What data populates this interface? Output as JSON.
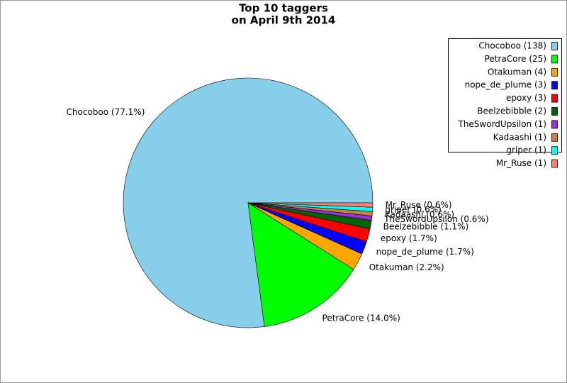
{
  "chart_data": {
    "type": "pie",
    "title": "Top 10 taggers",
    "subtitle": "on April 9th 2014",
    "categories": [
      "Chocoboo",
      "PetraCore",
      "Otakuman",
      "nope_de_plume",
      "epoxy",
      "Beelzebibble",
      "TheSwordUpsilon",
      "Kadaashi",
      "griper",
      "Mr_Ruse"
    ],
    "values": [
      138,
      25,
      4,
      3,
      3,
      2,
      1,
      1,
      1,
      1
    ],
    "value_labels": [
      "Chocoboo (77.1%)",
      "PetraCore (14.0%)",
      "Otakuman (2.2%)",
      "nope_de_plume (1.7%)",
      "epoxy (1.7%)",
      "Beelzebibble (1.1%)",
      "TheSwordUpsilon (0.6%)",
      "Kadaashi (0.6%)",
      "griper (0.6%)",
      "Mr_Ruse (0.6%)"
    ],
    "legend_labels": [
      "Chocoboo (138)",
      "PetraCore (25)",
      "Otakuman (4)",
      "nope_de_plume (3)",
      "epoxy (3)",
      "Beelzebibble (2)",
      "TheSwordUpsilon (1)",
      "Kadaashi (1)",
      "griper (1)",
      "Mr_Ruse (1)"
    ],
    "colors": [
      "#87ceeb",
      "#00ff00",
      "#ffa500",
      "#0000ff",
      "#ff0000",
      "#006400",
      "#9b30e0",
      "#c8823a",
      "#00ffff",
      "#fa8072"
    ],
    "legend_position": "upper right"
  }
}
